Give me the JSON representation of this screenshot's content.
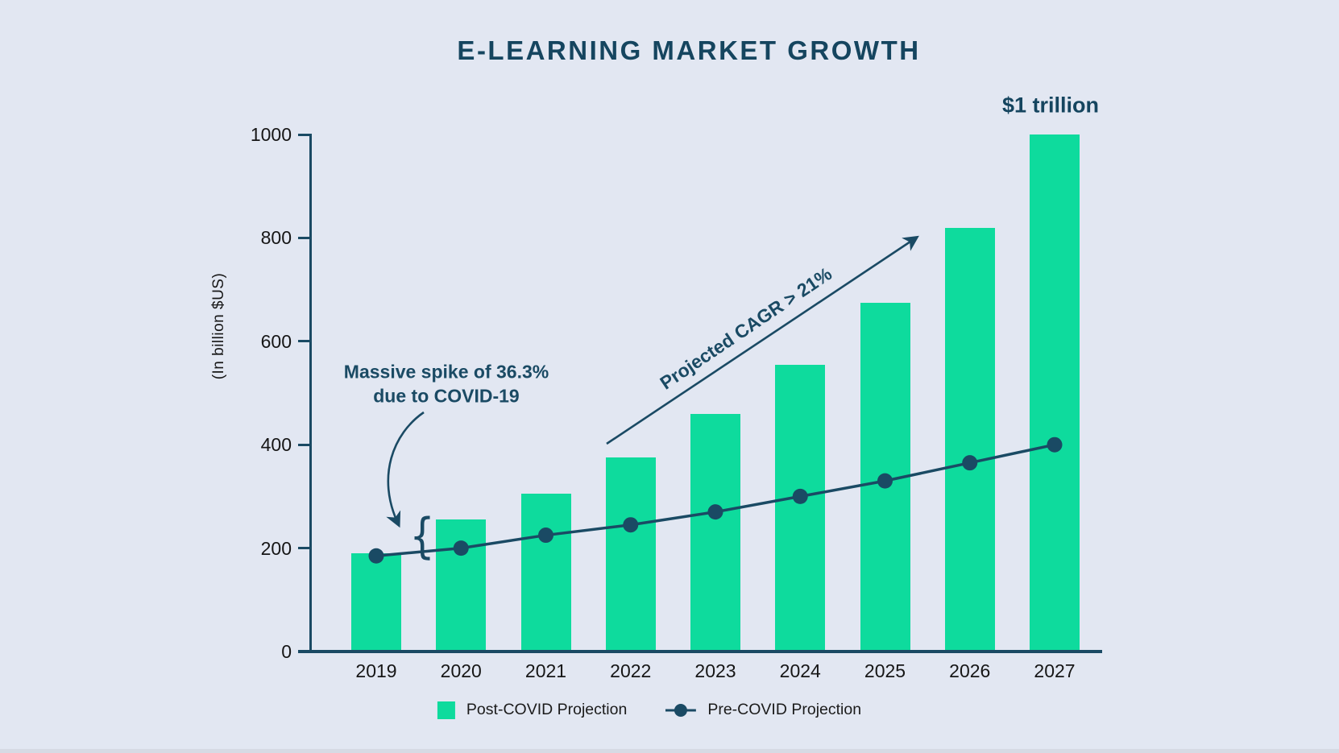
{
  "chart": {
    "title": "E-LEARNING MARKET GROWTH",
    "ylabel": "(In billion $US)",
    "callout": "$1 trillion",
    "annotations": {
      "spike_line1": "Massive spike of 36.3%",
      "spike_line2": "due to COVID-19",
      "brace": "{",
      "cagr": "Projected CAGR > 21%"
    },
    "legend": [
      {
        "label": "Post-COVID Projection",
        "marker": "bar-swatch"
      },
      {
        "label": "Pre-COVID Projection",
        "marker": "line-dot"
      }
    ]
  },
  "chart_data": {
    "type": "bar",
    "title": "E-LEARNING MARKET GROWTH",
    "xlabel": "",
    "ylabel": "(In billion $US)",
    "categories": [
      "2019",
      "2020",
      "2021",
      "2022",
      "2023",
      "2024",
      "2025",
      "2026",
      "2027"
    ],
    "series": [
      {
        "name": "Post-COVID Projection",
        "type": "bar",
        "color": "#0edb9d",
        "values": [
          190,
          255,
          305,
          375,
          460,
          555,
          675,
          820,
          1000
        ]
      },
      {
        "name": "Pre-COVID Projection",
        "type": "line",
        "color": "#1a4a64",
        "values": [
          185,
          200,
          225,
          245,
          270,
          300,
          330,
          365,
          400
        ]
      }
    ],
    "ylim": [
      0,
      1000
    ],
    "yticks": [
      0,
      200,
      400,
      600,
      800,
      1000
    ],
    "grid": false,
    "legend_position": "bottom",
    "annotations": [
      {
        "text": "Massive spike of 36.3% due to COVID-19",
        "target": "2020 bar vs pre-COVID level"
      },
      {
        "text": "Projected CAGR > 21%",
        "target": "bar tops 2022-2026"
      },
      {
        "text": "$1 trillion",
        "target": "2027 bar"
      }
    ]
  },
  "colors": {
    "background": "#e2e7f2",
    "bar_green": "#0edb9d",
    "navy": "#1a4a64",
    "title_navy": "#15455f",
    "text_black": "#161616"
  }
}
